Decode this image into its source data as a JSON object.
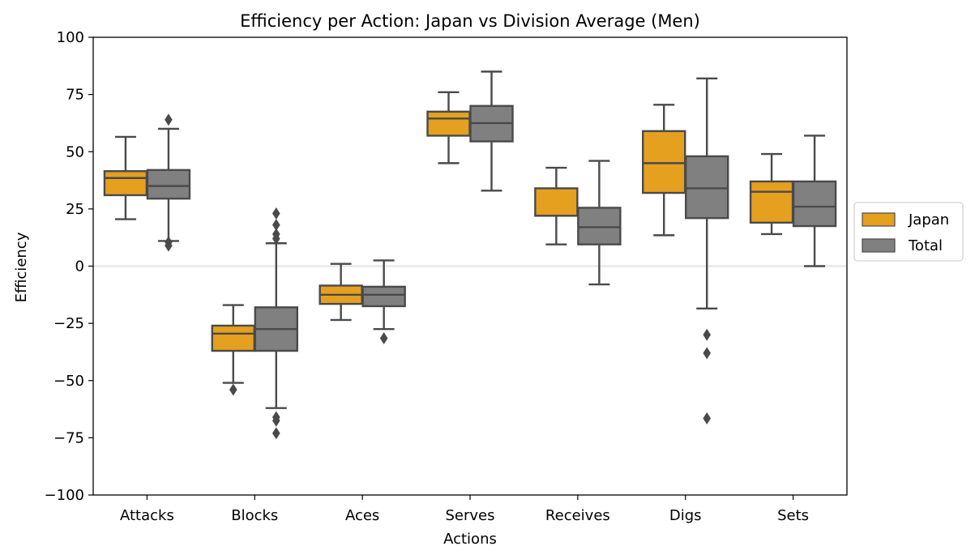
{
  "chart_data": {
    "type": "box",
    "title": "Efficiency per Action: Japan vs Division Average (Men)",
    "xlabel": "Actions",
    "ylabel": "Efficiency",
    "ylim": [
      -100,
      100
    ],
    "yticks": [
      -100,
      -75,
      -50,
      -25,
      0,
      25,
      50,
      75,
      100
    ],
    "reference_line": 0,
    "categories": [
      "Attacks",
      "Blocks",
      "Aces",
      "Serves",
      "Receives",
      "Digs",
      "Sets"
    ],
    "legend": {
      "placement": "right-center"
    },
    "series": [
      {
        "name": "Japan",
        "color": "#E5A020",
        "boxes": [
          {
            "min": 20.5,
            "q1": 31,
            "median": 38.5,
            "q3": 41.5,
            "max": 56.5,
            "outliers": []
          },
          {
            "min": -51,
            "q1": -37,
            "median": -29.5,
            "q3": -26,
            "max": -17,
            "outliers": [
              -54
            ]
          },
          {
            "min": -23.5,
            "q1": -16.5,
            "median": -12.5,
            "q3": -8.5,
            "max": 1,
            "outliers": []
          },
          {
            "min": 45,
            "q1": 57,
            "median": 64.5,
            "q3": 67.5,
            "max": 76,
            "outliers": []
          },
          {
            "min": 9.5,
            "q1": 22,
            "median": 22,
            "q3": 34,
            "max": 43,
            "outliers": []
          },
          {
            "min": 13.5,
            "q1": 32,
            "median": 45,
            "q3": 59,
            "max": 70.5,
            "outliers": []
          },
          {
            "min": 14,
            "q1": 19,
            "median": 32.5,
            "q3": 37,
            "max": 49,
            "outliers": []
          }
        ]
      },
      {
        "name": "Total",
        "color": "#808080",
        "boxes": [
          {
            "min": 11,
            "q1": 29.5,
            "median": 35,
            "q3": 42,
            "max": 60,
            "outliers": [
              64,
              9,
              10.5
            ]
          },
          {
            "min": -62,
            "q1": -37,
            "median": -27.5,
            "q3": -18,
            "max": 10,
            "outliers": [
              23,
              18,
              14,
              12,
              -66,
              -67.5,
              -73
            ]
          },
          {
            "min": -27.5,
            "q1": -17.5,
            "median": -12.5,
            "q3": -9,
            "max": 2.5,
            "outliers": [
              -31.5
            ]
          },
          {
            "min": 33,
            "q1": 54.5,
            "median": 62.5,
            "q3": 70,
            "max": 85,
            "outliers": []
          },
          {
            "min": -8,
            "q1": 9.5,
            "median": 17,
            "q3": 25.5,
            "max": 46,
            "outliers": []
          },
          {
            "min": -18.5,
            "q1": 21,
            "median": 34,
            "q3": 48,
            "max": 82,
            "outliers": [
              -30,
              -38,
              -66.5
            ]
          },
          {
            "min": 0,
            "q1": 17.5,
            "median": 26,
            "q3": 37,
            "max": 57,
            "outliers": []
          }
        ]
      }
    ]
  }
}
